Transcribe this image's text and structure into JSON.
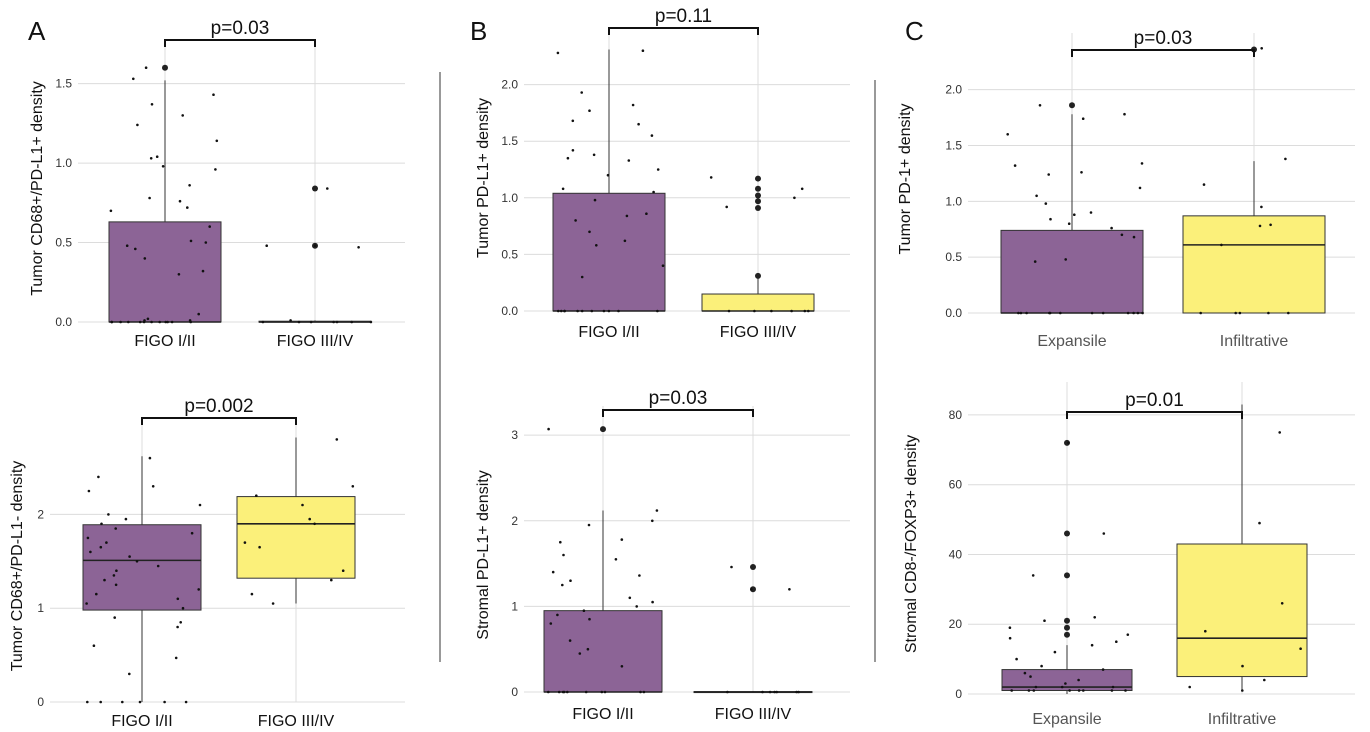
{
  "colors": {
    "purple": "#8c6496",
    "yellow": "#fbf07a",
    "outline": "#333333"
  },
  "panel_labels": [
    "A",
    "B",
    "C"
  ],
  "chart_data": [
    {
      "id": "A-top",
      "type": "box",
      "panel": "A",
      "ylabel": "Tumor CD68+/PD-L1+ density",
      "ylim": [
        0,
        1.68
      ],
      "yticks": [
        0,
        0.5,
        1,
        1.5
      ],
      "tick_labels": [
        "0.0",
        "0.5",
        "1.0",
        "1.5"
      ],
      "categories": [
        "FIGO I/II",
        "FIGO III/IV"
      ],
      "pvalue": "p=0.03",
      "boxes": [
        {
          "min": 0,
          "q1": 0,
          "median": 0,
          "q3": 0.63,
          "max": 1.52,
          "color": "#8c6496",
          "outliers": [
            1.6
          ],
          "points": [
            1.6,
            1.53,
            1.43,
            1.37,
            1.3,
            1.24,
            1.14,
            1.04,
            1.03,
            0.98,
            0.96,
            0.86,
            0.78,
            0.76,
            0.72,
            0.7,
            0.6,
            0.51,
            0.5,
            0.48,
            0.46,
            0.4,
            0.32,
            0.3,
            0.05,
            0.02,
            0.01,
            0.01,
            0,
            0,
            0,
            0,
            0,
            0,
            0,
            0,
            0,
            0,
            0,
            0
          ]
        },
        {
          "min": 0,
          "q1": 0,
          "median": 0,
          "q3": 0.005,
          "max": 0.01,
          "color": "#fbf07a",
          "outliers": [
            0.84,
            0.48
          ],
          "points": [
            0.84,
            0.48,
            0.48,
            0.47,
            0.01,
            0,
            0,
            0,
            0,
            0,
            0,
            0
          ]
        }
      ]
    },
    {
      "id": "A-bottom",
      "type": "box",
      "panel": "A",
      "ylabel": "Tumor CD68+/PD-L1- density",
      "ylim": [
        0,
        2.9
      ],
      "yticks": [
        0,
        1,
        2
      ],
      "tick_labels": [
        "0",
        "1",
        "2"
      ],
      "categories": [
        "FIGO I/II",
        "FIGO III/IV"
      ],
      "pvalue": "p=0.002",
      "boxes": [
        {
          "min": 0,
          "q1": 0.98,
          "median": 1.51,
          "q3": 1.89,
          "max": 2.62,
          "color": "#8c6496",
          "outliers": [],
          "points": [
            2.6,
            2.4,
            2.3,
            2.25,
            2.1,
            2.0,
            1.95,
            1.9,
            1.85,
            1.8,
            1.75,
            1.7,
            1.65,
            1.6,
            1.55,
            1.5,
            1.45,
            1.4,
            1.35,
            1.3,
            1.25,
            1.2,
            1.15,
            1.1,
            1.05,
            1.0,
            0.9,
            0.85,
            0.8,
            0.6,
            0.47,
            0.3,
            0,
            0,
            0,
            0,
            0,
            0
          ]
        },
        {
          "min": 1.05,
          "q1": 1.32,
          "median": 1.9,
          "q3": 2.19,
          "max": 2.82,
          "color": "#fbf07a",
          "outliers": [],
          "points": [
            2.8,
            2.3,
            2.2,
            2.1,
            1.95,
            1.9,
            1.7,
            1.65,
            1.4,
            1.3,
            1.15,
            1.05
          ]
        }
      ]
    },
    {
      "id": "B-top",
      "type": "box",
      "panel": "B",
      "ylabel": "Tumor PD-L1+ density",
      "ylim": [
        0,
        2.35
      ],
      "yticks": [
        0,
        0.5,
        1,
        1.5,
        2
      ],
      "tick_labels": [
        "0.0",
        "0.5",
        "1.0",
        "1.5",
        "2.0"
      ],
      "categories": [
        "FIGO I/II",
        "FIGO III/IV"
      ],
      "pvalue": "p=0.11",
      "boxes": [
        {
          "min": 0,
          "q1": 0,
          "median": 0,
          "q3": 1.04,
          "max": 2.31,
          "color": "#8c6496",
          "outliers": [],
          "points": [
            2.3,
            2.28,
            1.93,
            1.82,
            1.77,
            1.68,
            1.65,
            1.55,
            1.42,
            1.38,
            1.35,
            1.33,
            1.25,
            1.2,
            1.08,
            1.05,
            0.98,
            0.86,
            0.84,
            0.8,
            0.7,
            0.62,
            0.58,
            0.4,
            0.3,
            0,
            0,
            0,
            0,
            0,
            0,
            0,
            0,
            0,
            0,
            0
          ]
        },
        {
          "min": 0,
          "q1": 0,
          "median": 0,
          "q3": 0.15,
          "max": 0.3,
          "color": "#fbf07a",
          "outliers": [
            1.17,
            1.08,
            1.02,
            0.97,
            0.91,
            0.31
          ],
          "points": [
            1.18,
            1.08,
            1.0,
            0.92,
            0,
            0,
            0,
            0,
            0,
            0
          ]
        }
      ]
    },
    {
      "id": "B-bottom",
      "type": "box",
      "panel": "B",
      "ylabel": "Stromal PD-L1+ density",
      "ylim": [
        0,
        3.2
      ],
      "yticks": [
        0,
        1,
        2,
        3
      ],
      "tick_labels": [
        "0",
        "1",
        "2",
        "3"
      ],
      "categories": [
        "FIGO I/II",
        "FIGO III/IV"
      ],
      "pvalue": "p=0.03",
      "boxes": [
        {
          "min": 0,
          "q1": 0,
          "median": 0,
          "q3": 0.95,
          "max": 2.12,
          "color": "#8c6496",
          "outliers": [
            3.07
          ],
          "points": [
            3.07,
            2.12,
            2.0,
            1.95,
            1.78,
            1.75,
            1.6,
            1.55,
            1.4,
            1.36,
            1.3,
            1.25,
            1.1,
            1.05,
            1.0,
            0.95,
            0.9,
            0.85,
            0.8,
            0.6,
            0.5,
            0.45,
            0.3,
            0,
            0,
            0,
            0,
            0,
            0,
            0,
            0,
            0,
            0
          ]
        },
        {
          "min": 0,
          "q1": 0,
          "median": 0,
          "q3": 0.005,
          "max": 0.01,
          "color": "#fbf07a",
          "outliers": [
            1.46,
            1.2
          ],
          "points": [
            1.46,
            1.2,
            1.2,
            0,
            0,
            0,
            0,
            0,
            0,
            0
          ]
        }
      ]
    },
    {
      "id": "C-top",
      "type": "box",
      "panel": "C",
      "ylabel": "Tumor PD-1+ density",
      "ylim": [
        0,
        2.4
      ],
      "yticks": [
        0,
        0.5,
        1,
        1.5,
        2
      ],
      "tick_labels": [
        "0.0",
        "0.5",
        "1.0",
        "1.5",
        "2.0"
      ],
      "categories": [
        "Expansile",
        "Infiltrative"
      ],
      "pvalue": "p=0.03",
      "boxes": [
        {
          "min": 0,
          "q1": 0,
          "median": 0,
          "q3": 0.74,
          "max": 1.78,
          "color": "#8c6496",
          "outliers": [
            1.86
          ],
          "points": [
            1.86,
            1.78,
            1.74,
            1.6,
            1.34,
            1.32,
            1.26,
            1.24,
            1.12,
            1.05,
            0.98,
            0.9,
            0.88,
            0.84,
            0.8,
            0.76,
            0.7,
            0.68,
            0.48,
            0.46,
            0,
            0,
            0,
            0,
            0,
            0,
            0,
            0,
            0,
            0,
            0,
            0
          ]
        },
        {
          "min": 0,
          "q1": 0,
          "median": 0.61,
          "q3": 0.87,
          "max": 1.36,
          "color": "#fbf07a",
          "outliers": [
            2.36
          ],
          "points": [
            2.37,
            1.38,
            1.15,
            0.95,
            0.79,
            0.78,
            0.61,
            0,
            0,
            0,
            0,
            0
          ]
        }
      ]
    },
    {
      "id": "C-bottom",
      "type": "box",
      "panel": "C",
      "ylabel": "Stromal CD8-/FOXP3+ density",
      "ylim": [
        0,
        86
      ],
      "yticks": [
        0,
        20,
        40,
        60,
        80
      ],
      "tick_labels": [
        "0",
        "20",
        "40",
        "60",
        "80"
      ],
      "categories": [
        "Expansile",
        "Infiltrative"
      ],
      "pvalue": "p=0.01",
      "boxes": [
        {
          "min": 0,
          "q1": 1,
          "median": 2,
          "q3": 7,
          "max": 14,
          "color": "#8c6496",
          "outliers": [
            72,
            46,
            34,
            21,
            19,
            17
          ],
          "points": [
            72,
            46,
            34,
            22,
            21,
            19,
            17,
            16,
            15,
            14,
            12,
            10,
            8,
            7,
            6,
            5,
            4,
            3,
            2,
            2,
            2,
            1,
            1,
            1,
            1,
            1,
            1,
            1,
            1
          ]
        },
        {
          "min": 1,
          "q1": 5,
          "median": 16,
          "q3": 43,
          "max": 83,
          "color": "#fbf07a",
          "outliers": [],
          "points": [
            75,
            49,
            26,
            18,
            13,
            8,
            4,
            2,
            1
          ]
        }
      ]
    }
  ]
}
